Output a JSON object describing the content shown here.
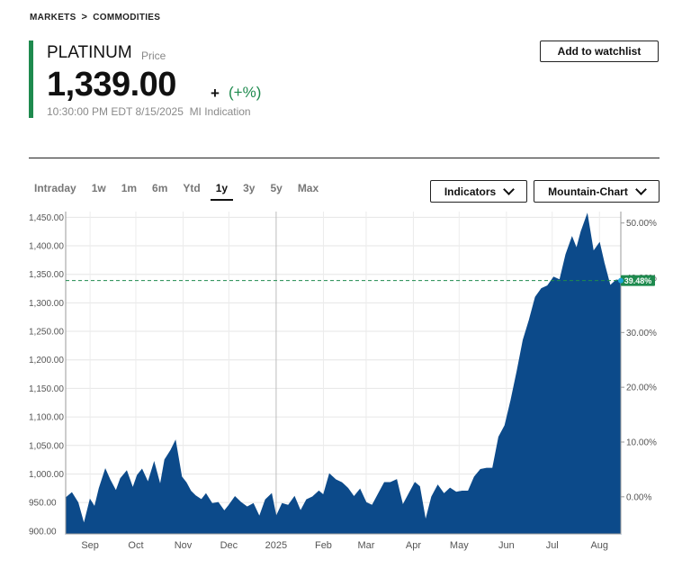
{
  "breadcrumb": {
    "items": [
      "MARKETS",
      "COMMODITIES"
    ],
    "separator": ">"
  },
  "quote": {
    "symbol": "PLATINUM",
    "type_label": "Price",
    "price": "1,339.00",
    "change": "+",
    "change_percent": "(+%)",
    "timestamp": "10:30:00 PM EDT 8/15/2025",
    "source": "MI Indication"
  },
  "actions": {
    "watchlist_label": "Add to watchlist"
  },
  "ranges": {
    "items": [
      "Intraday",
      "1w",
      "1m",
      "6m",
      "Ytd",
      "1y",
      "3y",
      "5y",
      "Max"
    ],
    "active": "1y"
  },
  "dropdowns": {
    "indicators": "Indicators",
    "chart_type": "Mountain-Chart"
  },
  "colors": {
    "area": "#0c4a8a",
    "positive": "#1e8a4e",
    "accent_marker": "#1aa6d8"
  },
  "chart_data": {
    "type": "area",
    "title": "",
    "xlabel": "",
    "ylabel": "",
    "ylim": [
      895,
      1460
    ],
    "y_ticks": [
      "900.00",
      "950.00",
      "1,000.00",
      "1,050.00",
      "1,100.00",
      "1,150.00",
      "1,200.00",
      "1,250.00",
      "1,300.00",
      "1,350.00",
      "1,400.00",
      "1,450.00"
    ],
    "y_tick_values": [
      900,
      950,
      1000,
      1050,
      1100,
      1150,
      1200,
      1250,
      1300,
      1350,
      1400,
      1450
    ],
    "y2_ticks": [
      "0.00%",
      "10.00%",
      "20.00%",
      "30.00%",
      "40.00%",
      "50.00%"
    ],
    "y2_tick_values": [
      0,
      10,
      20,
      30,
      40,
      50
    ],
    "y2_base": 960,
    "x_labels": [
      "Sep",
      "Oct",
      "Nov",
      "Dec",
      "2025",
      "Feb",
      "Mar",
      "Apr",
      "May",
      "Jun",
      "Jul",
      "Aug"
    ],
    "x_label_dates": [
      "2024-09-01",
      "2024-10-01",
      "2024-11-01",
      "2024-12-01",
      "2025-01-01",
      "2025-02-01",
      "2025-03-01",
      "2025-04-01",
      "2025-05-01",
      "2025-06-01",
      "2025-07-01",
      "2025-08-01"
    ],
    "x_range": [
      "2024-08-16",
      "2025-08-15"
    ],
    "reference_line": {
      "value": 1339,
      "label": "39.48%"
    },
    "grid": true,
    "series": [
      {
        "x": [
          "2024-08-16",
          "2024-08-20",
          "2024-08-24",
          "2024-08-28",
          "2024-09-01",
          "2024-09-04",
          "2024-09-07",
          "2024-09-11",
          "2024-09-14",
          "2024-09-18",
          "2024-09-21",
          "2024-09-25",
          "2024-09-29",
          "2024-10-02",
          "2024-10-05",
          "2024-10-09",
          "2024-10-13",
          "2024-10-17",
          "2024-10-20",
          "2024-10-24",
          "2024-10-27",
          "2024-10-31",
          "2024-11-03",
          "2024-11-06",
          "2024-11-09",
          "2024-11-13",
          "2024-11-16",
          "2024-11-20",
          "2024-11-24",
          "2024-11-28",
          "2024-12-01",
          "2024-12-05",
          "2024-12-09",
          "2024-12-13",
          "2024-12-17",
          "2024-12-21",
          "2024-12-25",
          "2024-12-29",
          "2025-01-01",
          "2025-01-05",
          "2025-01-09",
          "2025-01-13",
          "2025-01-17",
          "2025-01-21",
          "2025-01-25",
          "2025-01-29",
          "2025-02-01",
          "2025-02-05",
          "2025-02-09",
          "2025-02-13",
          "2025-02-17",
          "2025-02-21",
          "2025-02-25",
          "2025-03-01",
          "2025-03-05",
          "2025-03-09",
          "2025-03-13",
          "2025-03-17",
          "2025-03-21",
          "2025-03-25",
          "2025-03-29",
          "2025-04-02",
          "2025-04-05",
          "2025-04-09",
          "2025-04-13",
          "2025-04-17",
          "2025-04-21",
          "2025-04-25",
          "2025-04-29",
          "2025-05-03",
          "2025-05-07",
          "2025-05-11",
          "2025-05-15",
          "2025-05-19",
          "2025-05-23",
          "2025-05-27",
          "2025-05-31",
          "2025-06-04",
          "2025-06-08",
          "2025-06-12",
          "2025-06-16",
          "2025-06-20",
          "2025-06-24",
          "2025-06-28",
          "2025-07-02",
          "2025-07-06",
          "2025-07-10",
          "2025-07-14",
          "2025-07-17",
          "2025-07-20",
          "2025-07-24",
          "2025-07-28",
          "2025-08-01",
          "2025-08-04",
          "2025-08-08",
          "2025-08-12",
          "2025-08-15"
        ],
        "y": [
          958,
          967,
          950,
          912,
          955,
          942,
          975,
          1008,
          990,
          970,
          992,
          1005,
          975,
          998,
          1008,
          985,
          1020,
          980,
          1025,
          1042,
          1058,
          995,
          985,
          970,
          962,
          955,
          965,
          948,
          950,
          935,
          945,
          960,
          950,
          942,
          948,
          925,
          955,
          965,
          925,
          948,
          945,
          960,
          935,
          955,
          960,
          970,
          963,
          1000,
          990,
          985,
          975,
          960,
          973,
          950,
          945,
          965,
          985,
          985,
          990,
          945,
          965,
          985,
          978,
          918,
          960,
          980,
          965,
          975,
          968,
          970,
          970,
          995,
          1008,
          1010,
          1010,
          1065,
          1085,
          1130,
          1180,
          1235,
          1270,
          1310,
          1325,
          1330,
          1345,
          1340,
          1385,
          1415,
          1395,
          1425,
          1455,
          1390,
          1405,
          1370,
          1330,
          1340,
          1339
        ]
      }
    ]
  }
}
